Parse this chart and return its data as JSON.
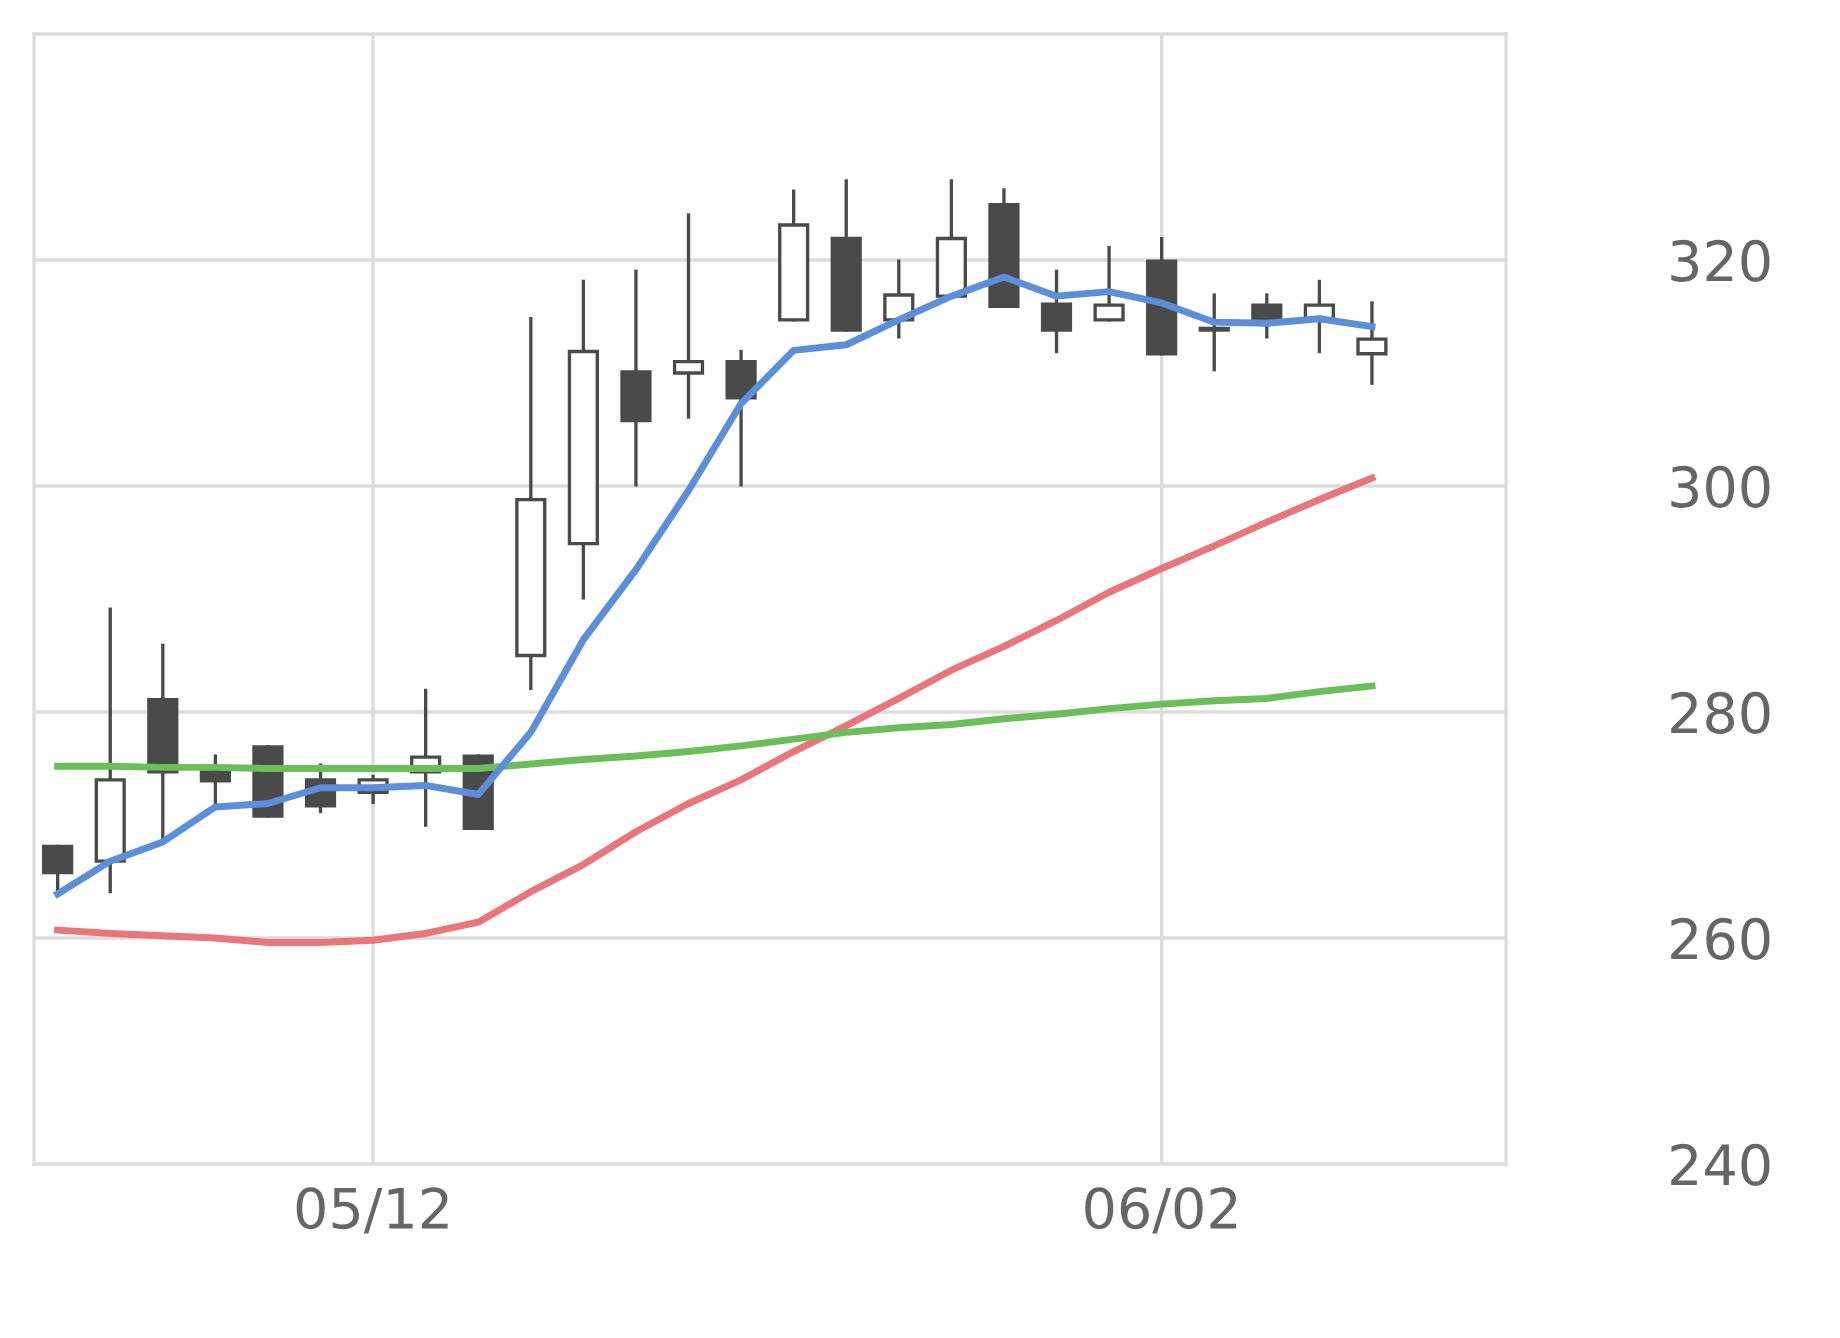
{
  "chart_data": {
    "type": "candlestick",
    "categories": [
      null,
      null,
      null,
      null,
      null,
      null,
      "05/12",
      null,
      null,
      null,
      null,
      null,
      null,
      null,
      null,
      null,
      null,
      null,
      null,
      null,
      null,
      "06/02",
      null,
      null,
      null,
      null
    ],
    "ohlc": [
      [
        268.1,
        268.1,
        263.9,
        265.8
      ],
      [
        266.8,
        289.1,
        264.1,
        274.0
      ],
      [
        281.1,
        285.9,
        268.4,
        274.7
      ],
      [
        274.7,
        276.1,
        271.7,
        273.9
      ],
      [
        276.9,
        276.9,
        270.8,
        270.8
      ],
      [
        274.0,
        275.3,
        271.2,
        271.7
      ],
      [
        272.9,
        274.3,
        272.0,
        274.0
      ],
      [
        274.7,
        281.9,
        270.0,
        276.0
      ],
      [
        276.1,
        276.1,
        269.7,
        269.7
      ],
      [
        285.0,
        314.8,
        282.1,
        298.8
      ],
      [
        294.9,
        318.1,
        290.1,
        311.9
      ],
      [
        310.1,
        319.0,
        300.1,
        305.8
      ],
      [
        310.0,
        324.0,
        306.1,
        311.0
      ],
      [
        311.0,
        311.9,
        300.1,
        307.8
      ],
      [
        314.7,
        326.1,
        314.7,
        323.1
      ],
      [
        321.9,
        327.0,
        313.8,
        313.8
      ],
      [
        314.7,
        319.9,
        313.2,
        316.9
      ],
      [
        316.8,
        327.0,
        316.8,
        321.9
      ],
      [
        324.9,
        326.2,
        315.9,
        315.9
      ],
      [
        316.1,
        319.0,
        311.9,
        313.8
      ],
      [
        314.7,
        321.1,
        314.7,
        316.0
      ],
      [
        319.9,
        321.9,
        311.7,
        311.7
      ],
      [
        313.9,
        316.9,
        310.3,
        313.8
      ],
      [
        316.0,
        316.9,
        313.2,
        314.7
      ],
      [
        314.8,
        318.1,
        311.9,
        316.0
      ],
      [
        311.7,
        316.2,
        309.1,
        313.0
      ]
    ],
    "series": [
      {
        "type": "line",
        "color": "#e8767a",
        "values": [
          260.7,
          260.4,
          260.2,
          260.0,
          259.6,
          259.6,
          259.8,
          260.4,
          261.4,
          264.1,
          266.5,
          269.4,
          271.9,
          274.0,
          276.5,
          278.8,
          281.2,
          283.7,
          285.8,
          288.1,
          290.6,
          292.7,
          294.7,
          296.8,
          298.8,
          300.7
        ]
      },
      {
        "type": "line",
        "color": "#6abf5a",
        "values": [
          275.2,
          275.2,
          275.1,
          275.1,
          275.0,
          275.0,
          275.0,
          275.0,
          275.0,
          275.4,
          275.8,
          276.1,
          276.5,
          277.0,
          277.6,
          278.2,
          278.6,
          278.9,
          279.4,
          279.8,
          280.3,
          280.7,
          281.0,
          281.2,
          281.8,
          282.3
        ]
      },
      {
        "type": "line",
        "color": "#5b8fd9",
        "values": [
          263.9,
          266.8,
          268.5,
          271.6,
          271.9,
          273.3,
          273.3,
          273.5,
          272.7,
          278.2,
          286.4,
          292.6,
          299.6,
          307.3,
          312.0,
          312.5,
          314.7,
          316.8,
          318.5,
          316.8,
          317.2,
          316.2,
          314.5,
          314.4,
          314.8,
          314.1
        ]
      }
    ],
    "ylim": [
      240,
      340
    ],
    "yticks": [
      240,
      260,
      280,
      300,
      320
    ],
    "grid": true
  }
}
